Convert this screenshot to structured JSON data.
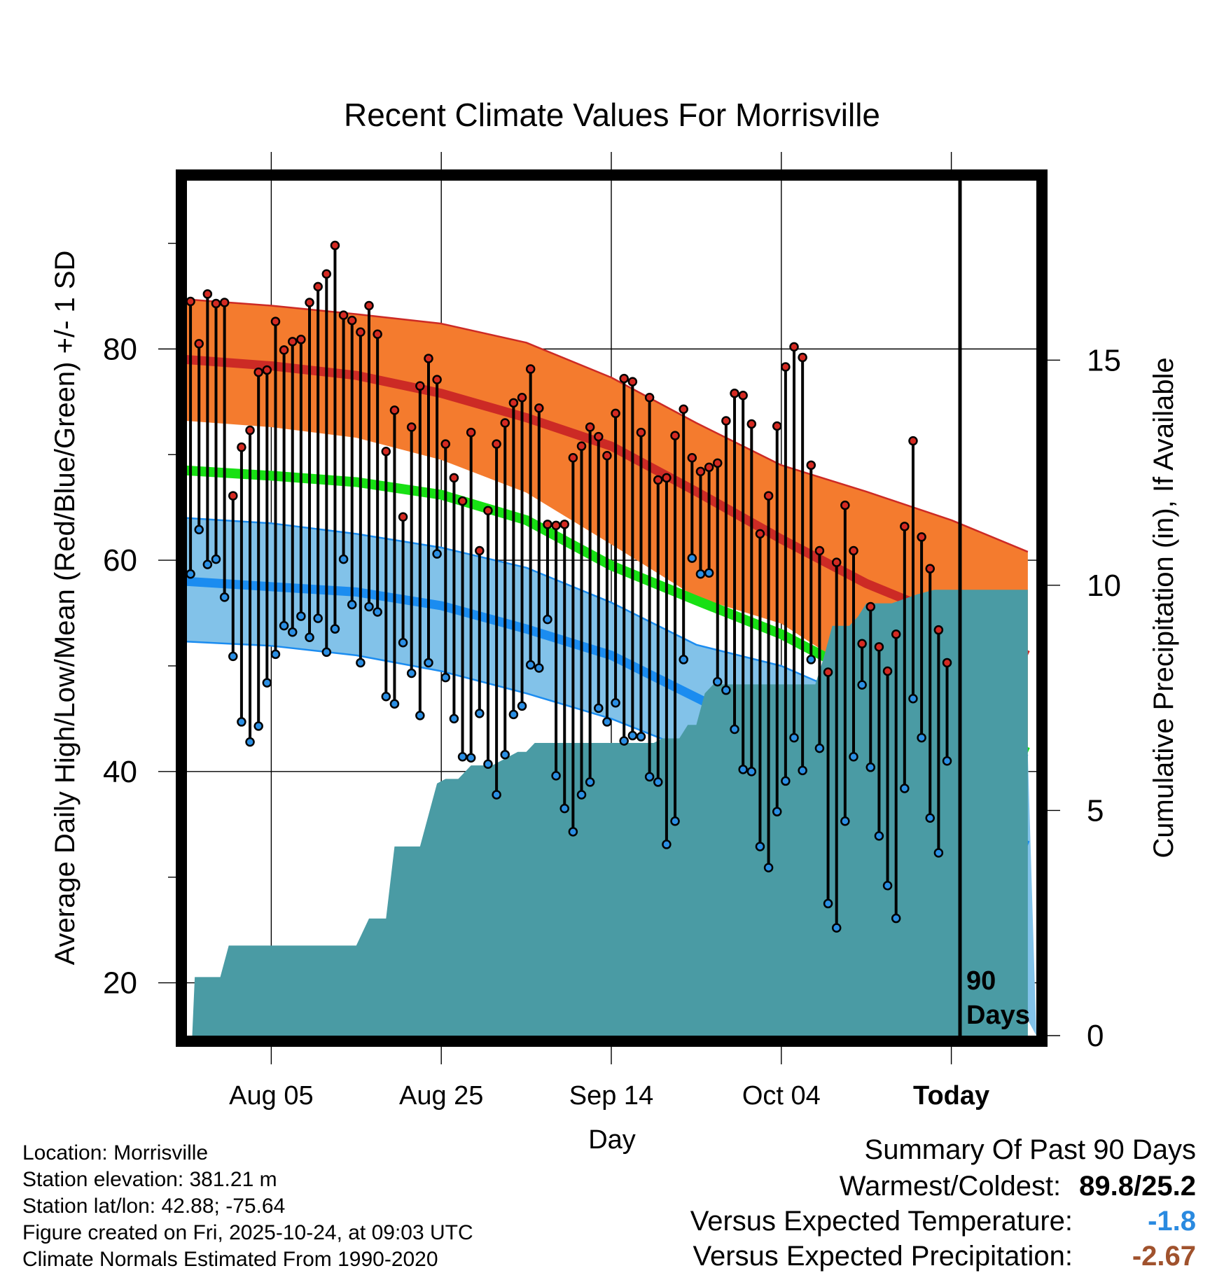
{
  "chart_data": {
    "type": "line",
    "title": "Recent Climate Values For Morrisville",
    "xlabel": "Day",
    "ylabel": "Average Daily High/Low/Mean (Red/Blue/Green) +/- 1 SD",
    "y2label": "Cumulative Precipitation (in), If Available",
    "ylim": [
      15,
      96
    ],
    "y2lim": [
      0,
      19
    ],
    "xlim": [
      0,
      100
    ],
    "grid": true,
    "x_ticks": [
      {
        "day": 10,
        "label": "Aug 05"
      },
      {
        "day": 30,
        "label": "Aug 25"
      },
      {
        "day": 50,
        "label": "Sep 14"
      },
      {
        "day": 70,
        "label": "Oct 04"
      },
      {
        "day": 90,
        "label": "Today"
      }
    ],
    "y_ticks": [
      20,
      40,
      60,
      80
    ],
    "y2_ticks": [
      0,
      5,
      10,
      15
    ],
    "today_day": 90,
    "today_label": [
      "90",
      "Days"
    ],
    "colors": {
      "high_band": "#f47b2e",
      "high_line": "#cc2a25",
      "low_band": "#82c2e9",
      "low_line": "#1b8cf0",
      "mean_line": "#18e014",
      "precip": "#4a9ba4",
      "high_point": "#d42a22",
      "low_point": "#2b8fe4"
    },
    "normals": {
      "days": [
        0,
        10,
        20,
        30,
        40,
        50,
        60,
        70,
        80,
        90,
        99
      ],
      "high_mean": [
        79.0,
        78.4,
        77.5,
        75.8,
        73.5,
        70.8,
        66.5,
        62.0,
        57.8,
        54.5,
        51.0
      ],
      "high_upper": [
        84.7,
        84.1,
        83.3,
        82.4,
        80.6,
        77.3,
        73.0,
        69.0,
        66.5,
        63.8,
        60.8
      ],
      "high_lower": [
        73.2,
        72.6,
        71.6,
        69.5,
        66.4,
        61.5,
        56.5,
        54.0,
        48.8,
        45.5,
        42.0
      ],
      "mean": [
        68.5,
        68.0,
        67.4,
        66.2,
        63.8,
        59.5,
        56.2,
        53.0,
        48.8,
        45.0,
        41.8
      ],
      "low_mean": [
        58.0,
        57.5,
        57.0,
        55.7,
        53.5,
        51.0,
        47.0,
        43.0,
        39.8,
        36.0,
        33.0
      ],
      "low_upper": [
        64.0,
        63.5,
        62.5,
        61.2,
        59.3,
        56.0,
        52.0,
        50.0,
        46.5,
        45.0,
        41.5
      ],
      "low_lower": [
        52.3,
        51.9,
        51.0,
        49.5,
        47.4,
        45.0,
        41.8,
        38.0,
        34.0,
        29.8,
        null
      ]
    },
    "daily_high": [
      84.5,
      80.5,
      85.2,
      84.3,
      84.4,
      66.1,
      70.7,
      72.3,
      77.8,
      78.0,
      82.6,
      79.9,
      80.7,
      80.9,
      84.4,
      85.9,
      87.1,
      89.8,
      83.2,
      82.7,
      81.6,
      84.1,
      81.4,
      70.3,
      74.2,
      64.1,
      72.6,
      76.5,
      79.1,
      77.1,
      71.0,
      67.8,
      65.6,
      72.1,
      60.9,
      64.7,
      71.0,
      73.0,
      74.9,
      75.4,
      78.1,
      74.4,
      63.4,
      63.3,
      63.4,
      69.7,
      70.8,
      72.6,
      71.7,
      69.9,
      73.9,
      77.2,
      76.9,
      72.1,
      75.4,
      67.6,
      67.8,
      71.8,
      74.3,
      69.7,
      68.4,
      68.8,
      69.2,
      73.2,
      75.8,
      75.6,
      72.9,
      62.5,
      66.1,
      72.7,
      78.3,
      80.2,
      79.2,
      69.0,
      60.9,
      49.4,
      59.8,
      65.2,
      60.9,
      52.1,
      55.6,
      51.8,
      49.5,
      53.0,
      63.2,
      71.3,
      62.2,
      59.2,
      53.4,
      50.3
    ],
    "daily_low": [
      58.7,
      62.9,
      59.6,
      60.1,
      56.5,
      50.9,
      44.7,
      42.8,
      44.3,
      48.4,
      51.1,
      53.8,
      53.2,
      54.7,
      52.7,
      54.5,
      51.3,
      53.5,
      60.1,
      55.8,
      50.3,
      55.6,
      55.1,
      47.1,
      46.4,
      52.2,
      49.3,
      45.3,
      50.3,
      60.6,
      48.9,
      45.0,
      41.4,
      41.3,
      45.5,
      40.7,
      37.8,
      41.6,
      45.4,
      46.2,
      50.1,
      49.8,
      54.4,
      39.6,
      36.5,
      34.3,
      37.8,
      39.0,
      46.0,
      44.7,
      46.5,
      42.9,
      43.4,
      43.3,
      39.5,
      39.0,
      33.1,
      35.3,
      50.6,
      60.2,
      58.7,
      58.8,
      48.5,
      47.7,
      44.0,
      40.2,
      40.0,
      32.9,
      30.9,
      36.2,
      39.1,
      43.2,
      40.1,
      50.6,
      42.2,
      27.5,
      25.2,
      35.3,
      41.4,
      48.2,
      40.4,
      33.9,
      29.2,
      26.1,
      38.4,
      46.9,
      43.2,
      35.6,
      32.3,
      41.0
    ],
    "cumulative_precip": {
      "days": [
        0,
        0.7,
        1.0,
        4.0,
        5.0,
        20.0,
        21.5,
        23.5,
        24.5,
        27.5,
        28.5,
        29.5,
        30.5,
        32.0,
        33.5,
        36.0,
        39.0,
        40.0,
        41.0,
        55.0,
        56.0,
        57.0,
        58.0,
        59.0,
        60.0,
        61.0,
        62.0,
        63.0,
        64.0,
        66.0,
        74.0,
        75.0,
        76.0,
        78.0,
        79.0,
        80.0,
        83.0,
        86.0,
        88.0,
        99.0
      ],
      "values": [
        0.0,
        0.0,
        1.3,
        1.3,
        2.0,
        2.0,
        2.6,
        2.6,
        4.2,
        4.2,
        4.9,
        5.6,
        5.7,
        5.7,
        6.0,
        6.0,
        6.3,
        6.3,
        6.5,
        6.5,
        6.6,
        6.6,
        6.6,
        6.9,
        6.9,
        7.6,
        7.8,
        7.8,
        7.8,
        7.8,
        7.8,
        8.4,
        9.1,
        9.1,
        9.3,
        9.6,
        9.6,
        9.8,
        9.9,
        9.9
      ]
    }
  },
  "info": {
    "location": "Location: Morrisville",
    "elevation": "Station elevation: 381.21 m",
    "latlon": "Station lat/lon: 42.88; -75.64",
    "created": "Figure created on Fri, 2025-10-24, at 09:03 UTC",
    "normals": "Climate Normals Estimated From 1990-2020"
  },
  "summary": {
    "title": "Summary Of Past 90 Days",
    "warm_cold_label": "Warmest/Coldest:",
    "warm_cold_value": "89.8/25.2",
    "temp_label": "Versus Expected Temperature:",
    "temp_value": "-1.8",
    "temp_color": "#2a8ae0",
    "precip_label": "Versus Expected Precipitation:",
    "precip_value": "-2.67",
    "precip_color": "#a0522d"
  }
}
